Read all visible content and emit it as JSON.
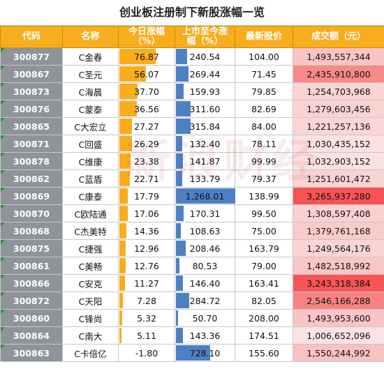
{
  "title": "创业板注册制下新股涨幅一览",
  "headers": {
    "code": "代码",
    "name": "名称",
    "today_line1": "今日涨幅",
    "today_line2": "（%）",
    "since_line1": "上市至今涨",
    "since_line2": "幅（%）",
    "price": "最新股价",
    "volume": "成交额（元）"
  },
  "colors": {
    "header_bg": "#f8ad1c",
    "code_bg": "#8f949b",
    "today_bar": "#f8ad1c",
    "since_bar": "#4e80c4",
    "volume_scale": [
      "#fbe3e3",
      "#f65454"
    ]
  },
  "rows": [
    {
      "code": "300877",
      "name": "C金春",
      "today": "76.87",
      "since": "240.54",
      "price": "104.00",
      "volume": "1,493,557,344",
      "today_pct": 76.87,
      "since_pct": 240.54,
      "volume_num": 1493557344
    },
    {
      "code": "300867",
      "name": "C圣元",
      "today": "56.07",
      "since": "269.44",
      "price": "71.45",
      "volume": "2,435,910,800",
      "today_pct": 56.07,
      "since_pct": 269.44,
      "volume_num": 2435910800
    },
    {
      "code": "300873",
      "name": "C海晨",
      "today": "37.70",
      "since": "159.93",
      "price": "79.85",
      "volume": "1,254,703,968",
      "today_pct": 37.7,
      "since_pct": 159.93,
      "volume_num": 1254703968
    },
    {
      "code": "300876",
      "name": "C蒙泰",
      "today": "36.56",
      "since": "311.60",
      "price": "82.69",
      "volume": "1,279,603,456",
      "today_pct": 36.56,
      "since_pct": 311.6,
      "volume_num": 1279603456
    },
    {
      "code": "300865",
      "name": "C大宏立",
      "today": "27.27",
      "since": "315.84",
      "price": "84.00",
      "volume": "1,221,257,136",
      "today_pct": 27.27,
      "since_pct": 315.84,
      "volume_num": 1221257136
    },
    {
      "code": "300871",
      "name": "C回盛",
      "today": "26.29",
      "since": "132.40",
      "price": "78.11",
      "volume": "1,030,435,152",
      "today_pct": 26.29,
      "since_pct": 132.4,
      "volume_num": 1030435152
    },
    {
      "code": "300878",
      "name": "C维康",
      "today": "23.38",
      "since": "141.87",
      "price": "99.99",
      "volume": "1,032,903,152",
      "today_pct": 23.38,
      "since_pct": 141.87,
      "volume_num": 1032903152
    },
    {
      "code": "300862",
      "name": "C蓝盾",
      "today": "22.71",
      "since": "133.79",
      "price": "79.37",
      "volume": "1,251,601,472",
      "today_pct": 22.71,
      "since_pct": 133.79,
      "volume_num": 1251601472
    },
    {
      "code": "300869",
      "name": "C康泰",
      "today": "17.79",
      "since": "1,268.01",
      "price": "138.99",
      "volume": "3,265,937,280",
      "today_pct": 17.79,
      "since_pct": 1268.01,
      "volume_num": 3265937280
    },
    {
      "code": "300870",
      "name": "C欧陆通",
      "today": "17.06",
      "since": "170.31",
      "price": "99.50",
      "volume": "1,308,597,408",
      "today_pct": 17.06,
      "since_pct": 170.31,
      "volume_num": 1308597408
    },
    {
      "code": "300868",
      "name": "C杰美特",
      "today": "14.36",
      "since": "108.63",
      "price": "75.00",
      "volume": "1,379,761,168",
      "today_pct": 14.36,
      "since_pct": 108.63,
      "volume_num": 1379761168
    },
    {
      "code": "300875",
      "name": "C捷强",
      "today": "12.96",
      "since": "208.46",
      "price": "163.79",
      "volume": "1,249,564,176",
      "today_pct": 12.96,
      "since_pct": 208.46,
      "volume_num": 1249564176
    },
    {
      "code": "300861",
      "name": "C美畅",
      "today": "12.76",
      "since": "80.53",
      "price": "79.00",
      "volume": "1,482,518,992",
      "today_pct": 12.76,
      "since_pct": 80.53,
      "volume_num": 1482518992
    },
    {
      "code": "300866",
      "name": "C安克",
      "today": "11.27",
      "since": "146.40",
      "price": "163.41",
      "volume": "3,243,318,384",
      "today_pct": 11.27,
      "since_pct": 146.4,
      "volume_num": 3243318384
    },
    {
      "code": "300872",
      "name": "C天阳",
      "today": "7.28",
      "since": "284.72",
      "price": "82.05",
      "volume": "2,546,166,288",
      "today_pct": 7.28,
      "since_pct": 284.72,
      "volume_num": 2546166288
    },
    {
      "code": "300860",
      "name": "C锋尚",
      "today": "5.32",
      "since": "50.70",
      "price": "208.00",
      "volume": "1,493,953,600",
      "today_pct": 5.32,
      "since_pct": 50.7,
      "volume_num": 1493953600
    },
    {
      "code": "300864",
      "name": "C南大",
      "today": "5.11",
      "since": "143.36",
      "price": "174.51",
      "volume": "1,006,652,096",
      "today_pct": 5.11,
      "since_pct": 143.36,
      "volume_num": 1006652096
    },
    {
      "code": "300863",
      "name": "C卡倍亿",
      "today": "-1.80",
      "since": "728.10",
      "price": "155.60",
      "volume": "1,550,244,992",
      "today_pct": -1.8,
      "since_pct": 728.1,
      "volume_num": 1550244992
    }
  ]
}
